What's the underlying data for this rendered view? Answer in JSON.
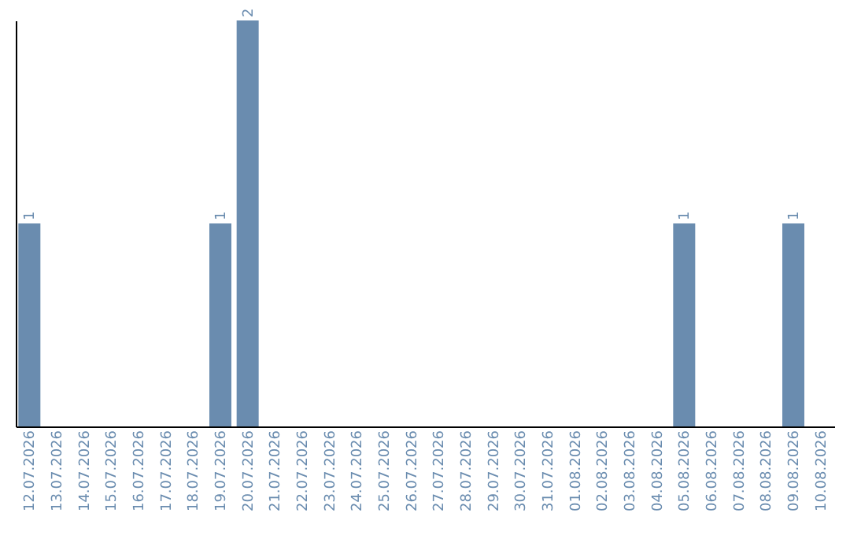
{
  "chart_data": {
    "type": "bar",
    "categories": [
      "12.07.2026",
      "13.07.2026",
      "14.07.2026",
      "15.07.2026",
      "16.07.2026",
      "17.07.2026",
      "18.07.2026",
      "19.07.2026",
      "20.07.2026",
      "21.07.2026",
      "22.07.2026",
      "23.07.2026",
      "24.07.2026",
      "25.07.2026",
      "26.07.2026",
      "27.07.2026",
      "28.07.2026",
      "29.07.2026",
      "30.07.2026",
      "31.07.2026",
      "01.08.2026",
      "02.08.2026",
      "03.08.2026",
      "04.08.2026",
      "05.08.2026",
      "06.08.2026",
      "07.08.2026",
      "08.08.2026",
      "09.08.2026",
      "10.08.2026"
    ],
    "values": [
      1,
      0,
      0,
      0,
      0,
      0,
      0,
      1,
      2,
      0,
      0,
      0,
      0,
      0,
      0,
      0,
      0,
      0,
      0,
      0,
      0,
      0,
      0,
      0,
      1,
      0,
      0,
      0,
      1,
      0
    ],
    "value_labels": [
      "1",
      null,
      null,
      null,
      null,
      null,
      null,
      "1",
      "2",
      null,
      null,
      null,
      null,
      null,
      null,
      null,
      null,
      null,
      null,
      null,
      null,
      null,
      null,
      null,
      "1",
      null,
      null,
      null,
      "1",
      null
    ],
    "color": "#6a8caf",
    "tick_labels": "x",
    "grid": false
  }
}
